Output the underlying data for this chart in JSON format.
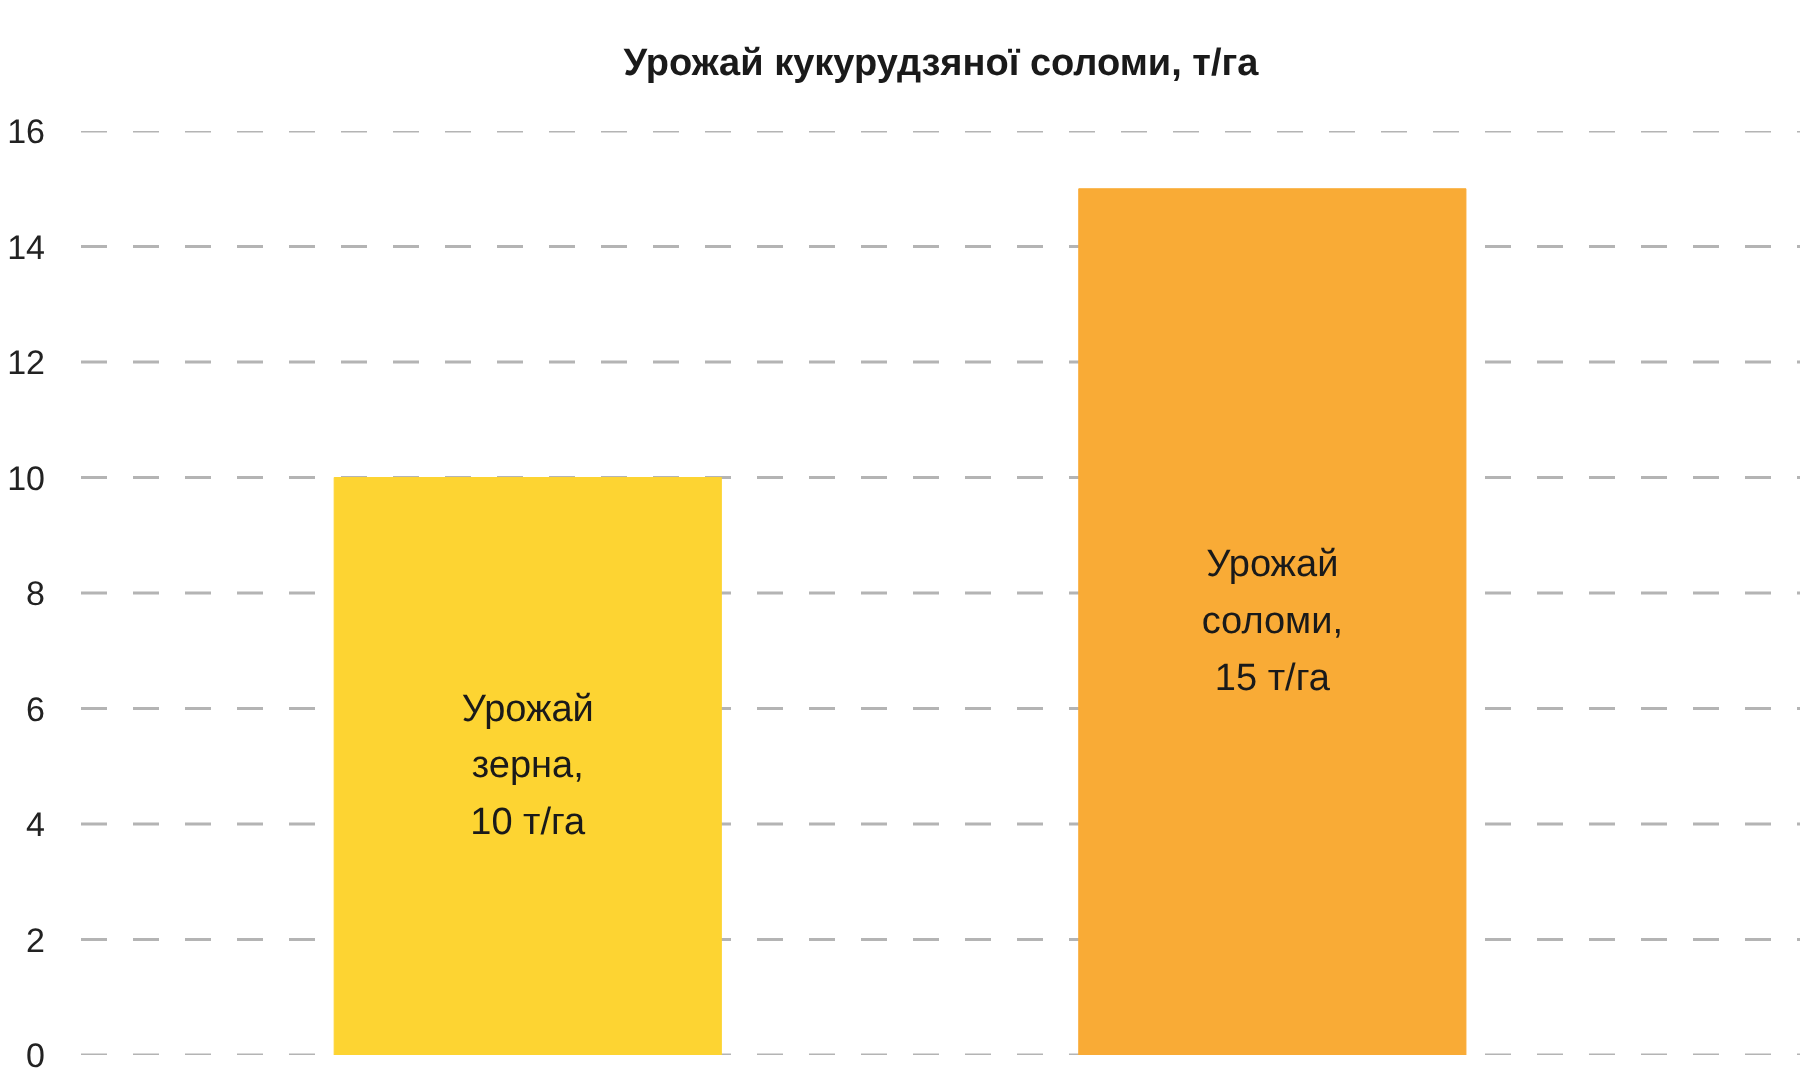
{
  "chart_data": {
    "type": "bar",
    "title": "Урожай кукурудзяної соломи, т/га",
    "categories": [
      null,
      null
    ],
    "values": [
      10,
      15
    ],
    "colors": [
      "#fdd432",
      "#f9ab36"
    ],
    "value_labels": [
      "Урожай\nзерна,\n10 т/га",
      "Урожай\nсоломи,\n15 т/га"
    ],
    "ylim": [
      0,
      16
    ],
    "yticks": [
      0,
      2,
      4,
      6,
      8,
      10,
      12,
      14,
      16
    ],
    "grid": "y"
  }
}
